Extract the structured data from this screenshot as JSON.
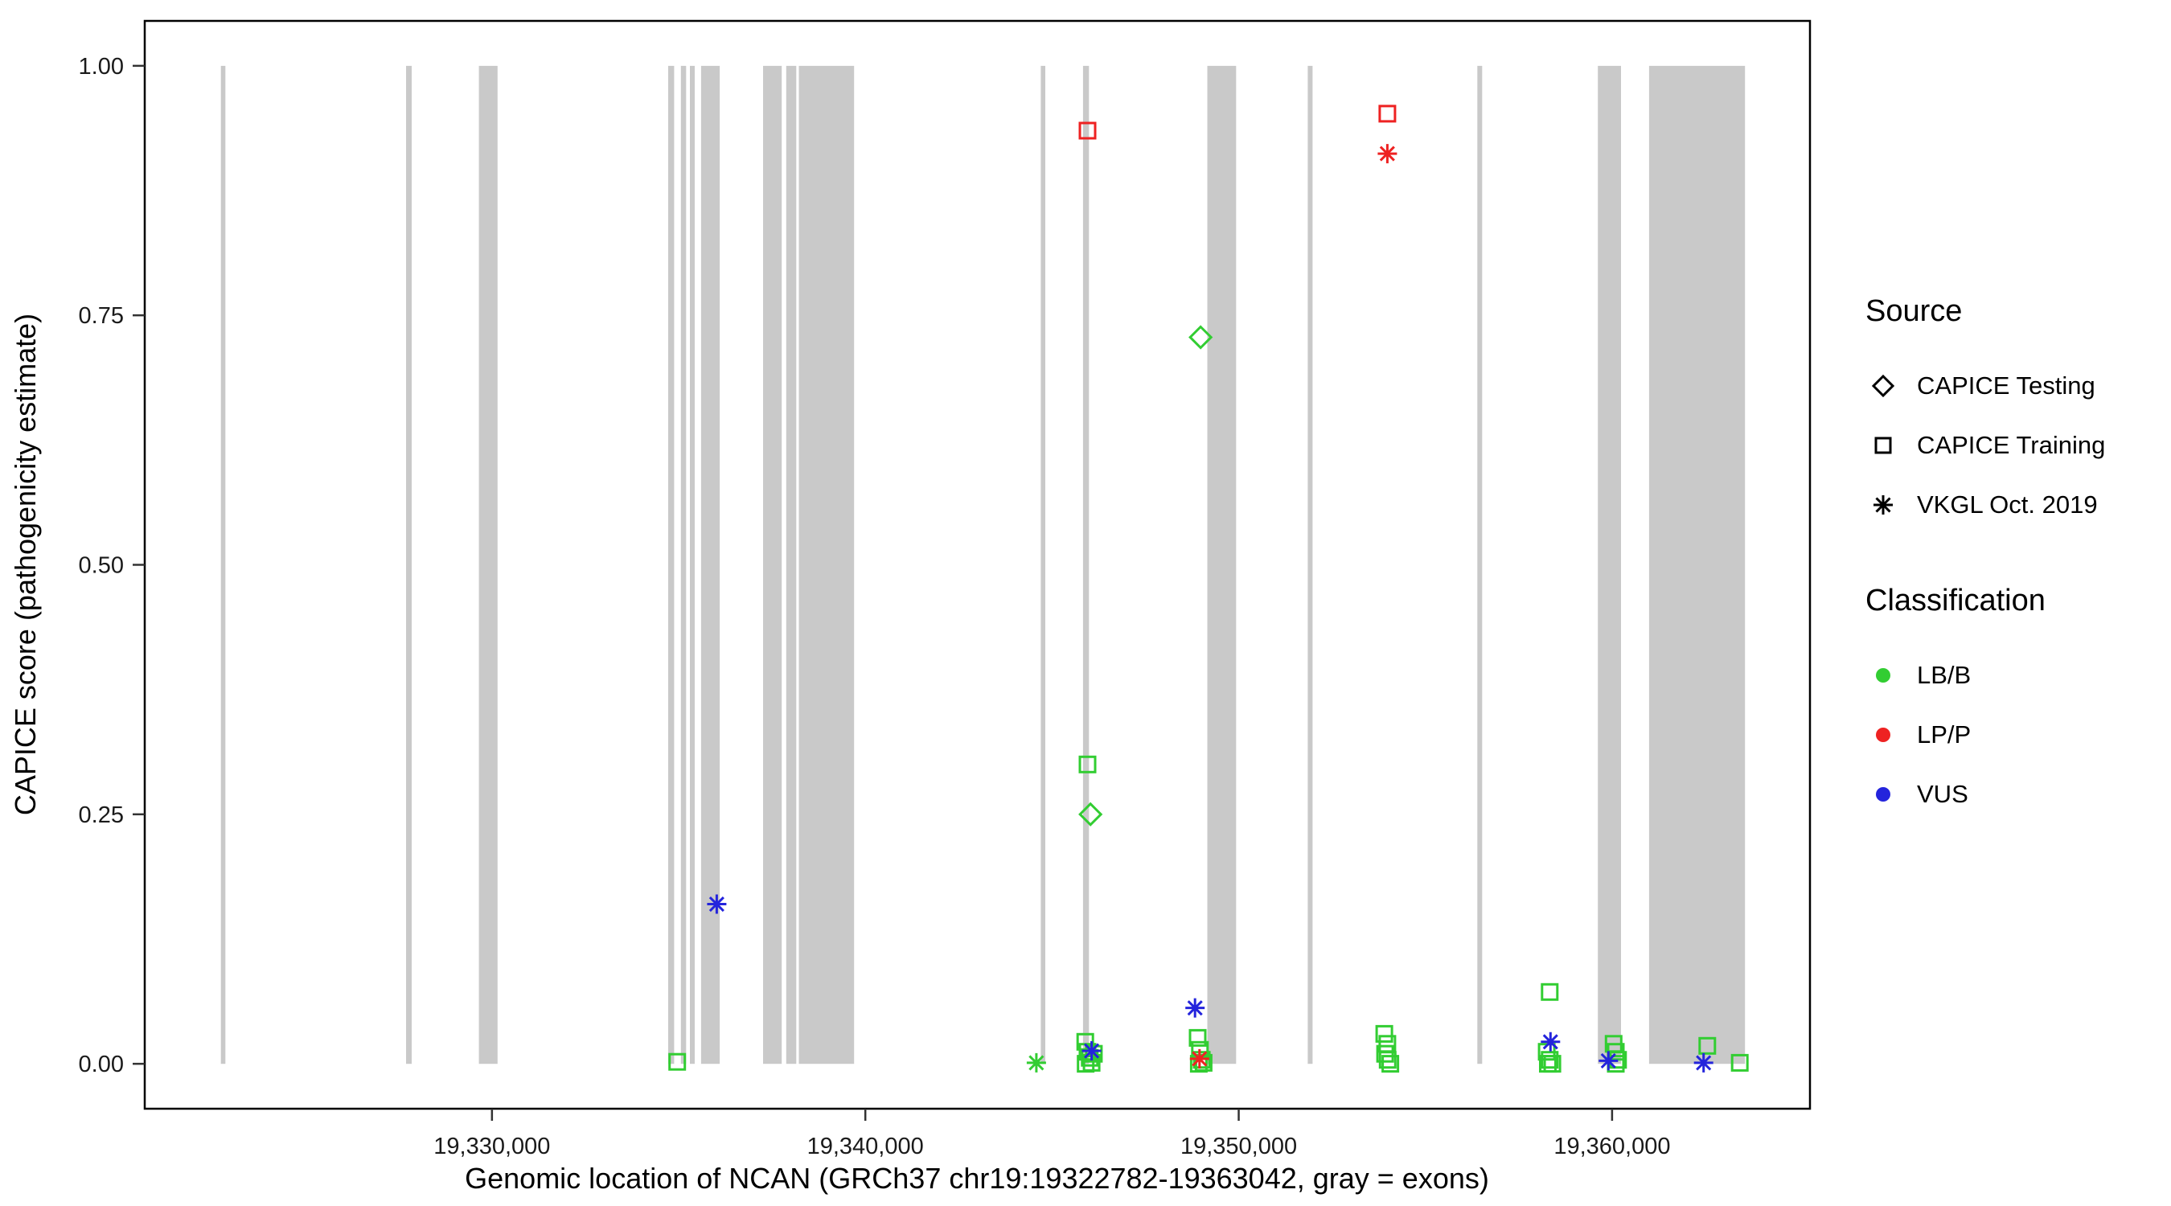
{
  "figure": {
    "background": "#FFFFFF"
  },
  "chart_data": {
    "type": "scatter",
    "title": "",
    "xlabel": "Genomic location of NCAN (GRCh37 chr19:19322782-19363042, gray = exons)",
    "ylabel": "CAPICE score (pathogenicity estimate)",
    "xlim": [
      19320700,
      19365300
    ],
    "ylim": [
      -0.045,
      1.045
    ],
    "x_ticks": [
      19330000,
      19340000,
      19350000,
      19360000
    ],
    "x_tick_labels": [
      "19,330,000",
      "19,340,000",
      "19,350,000",
      "19,360,000"
    ],
    "y_ticks": [
      0.0,
      0.25,
      0.5,
      0.75,
      1.0
    ],
    "y_tick_labels": [
      "0.00",
      "0.25",
      "0.50",
      "0.75",
      "1.00"
    ],
    "grid": "off",
    "legend_position": "right",
    "exon_color": "#C9C9C9",
    "exon_band_yrange": [
      0,
      1
    ],
    "exons": [
      [
        19322740,
        19322860
      ],
      [
        19327700,
        19327850
      ],
      [
        19329650,
        19330150
      ],
      [
        19334720,
        19334880
      ],
      [
        19335060,
        19335200
      ],
      [
        19335300,
        19335430
      ],
      [
        19335600,
        19336100
      ],
      [
        19337260,
        19337760
      ],
      [
        19337880,
        19338150
      ],
      [
        19338220,
        19339700
      ],
      [
        19344700,
        19344820
      ],
      [
        19345830,
        19345990
      ],
      [
        19349160,
        19349930
      ],
      [
        19351850,
        19351980
      ],
      [
        19356390,
        19356520
      ],
      [
        19359620,
        19360240
      ],
      [
        19360990,
        19363560
      ]
    ],
    "colors": {
      "LB/B": "#32CD32",
      "LP/P": "#EE2222",
      "VUS": "#2424DC"
    },
    "markers": {
      "CAPICE Testing": "diamond",
      "CAPICE Training": "square",
      "VKGL Oct. 2019": "asterisk"
    },
    "points": [
      {
        "x": 19348980,
        "y": 0.728,
        "source": "CAPICE Testing",
        "classification": "LB/B"
      },
      {
        "x": 19346030,
        "y": 0.25,
        "source": "CAPICE Testing",
        "classification": "LB/B"
      },
      {
        "x": 19345950,
        "y": 0.3,
        "source": "CAPICE Training",
        "classification": "LB/B"
      },
      {
        "x": 19334960,
        "y": 0.002,
        "source": "CAPICE Training",
        "classification": "LB/B"
      },
      {
        "x": 19358330,
        "y": 0.072,
        "source": "CAPICE Training",
        "classification": "LB/B"
      },
      {
        "x": 19345890,
        "y": 0.022,
        "source": "CAPICE Training",
        "classification": "LB/B"
      },
      {
        "x": 19345950,
        "y": 0.012,
        "source": "CAPICE Training",
        "classification": "LB/B"
      },
      {
        "x": 19346010,
        "y": 0.006,
        "source": "CAPICE Training",
        "classification": "LB/B"
      },
      {
        "x": 19346060,
        "y": 0.001,
        "source": "CAPICE Training",
        "classification": "LB/B"
      },
      {
        "x": 19345900,
        "y": 0.0,
        "source": "CAPICE Training",
        "classification": "LB/B"
      },
      {
        "x": 19346120,
        "y": 0.01,
        "source": "CAPICE Training",
        "classification": "LB/B"
      },
      {
        "x": 19348900,
        "y": 0.026,
        "source": "CAPICE Training",
        "classification": "LB/B"
      },
      {
        "x": 19348960,
        "y": 0.014,
        "source": "CAPICE Training",
        "classification": "LB/B"
      },
      {
        "x": 19349010,
        "y": 0.004,
        "source": "CAPICE Training",
        "classification": "LB/B"
      },
      {
        "x": 19348930,
        "y": 0.0,
        "source": "CAPICE Training",
        "classification": "LB/B"
      },
      {
        "x": 19349060,
        "y": 0.001,
        "source": "CAPICE Training",
        "classification": "LB/B"
      },
      {
        "x": 19353900,
        "y": 0.03,
        "source": "CAPICE Training",
        "classification": "LB/B"
      },
      {
        "x": 19353980,
        "y": 0.02,
        "source": "CAPICE Training",
        "classification": "LB/B"
      },
      {
        "x": 19353920,
        "y": 0.01,
        "source": "CAPICE Training",
        "classification": "LB/B"
      },
      {
        "x": 19353990,
        "y": 0.004,
        "source": "CAPICE Training",
        "classification": "LB/B"
      },
      {
        "x": 19354060,
        "y": 0.0,
        "source": "CAPICE Training",
        "classification": "LB/B"
      },
      {
        "x": 19358250,
        "y": 0.012,
        "source": "CAPICE Training",
        "classification": "LB/B"
      },
      {
        "x": 19358330,
        "y": 0.004,
        "source": "CAPICE Training",
        "classification": "LB/B"
      },
      {
        "x": 19358280,
        "y": 0.0,
        "source": "CAPICE Training",
        "classification": "LB/B"
      },
      {
        "x": 19358400,
        "y": 0.0,
        "source": "CAPICE Training",
        "classification": "LB/B"
      },
      {
        "x": 19360040,
        "y": 0.02,
        "source": "CAPICE Training",
        "classification": "LB/B"
      },
      {
        "x": 19360100,
        "y": 0.012,
        "source": "CAPICE Training",
        "classification": "LB/B"
      },
      {
        "x": 19360160,
        "y": 0.004,
        "source": "CAPICE Training",
        "classification": "LB/B"
      },
      {
        "x": 19360100,
        "y": 0.0,
        "source": "CAPICE Training",
        "classification": "LB/B"
      },
      {
        "x": 19362550,
        "y": 0.018,
        "source": "CAPICE Training",
        "classification": "LB/B"
      },
      {
        "x": 19363420,
        "y": 0.001,
        "source": "CAPICE Training",
        "classification": "LB/B"
      },
      {
        "x": 19344580,
        "y": 0.001,
        "source": "VKGL Oct. 2019",
        "classification": "LB/B"
      },
      {
        "x": 19336020,
        "y": 0.16,
        "source": "VKGL Oct. 2019",
        "classification": "VUS"
      },
      {
        "x": 19348830,
        "y": 0.056,
        "source": "VKGL Oct. 2019",
        "classification": "VUS"
      },
      {
        "x": 19346060,
        "y": 0.013,
        "source": "VKGL Oct. 2019",
        "classification": "VUS"
      },
      {
        "x": 19358350,
        "y": 0.022,
        "source": "VKGL Oct. 2019",
        "classification": "VUS"
      },
      {
        "x": 19359900,
        "y": 0.003,
        "source": "VKGL Oct. 2019",
        "classification": "VUS"
      },
      {
        "x": 19362450,
        "y": 0.001,
        "source": "VKGL Oct. 2019",
        "classification": "VUS"
      },
      {
        "x": 19345950,
        "y": 0.935,
        "source": "CAPICE Training",
        "classification": "LP/P"
      },
      {
        "x": 19353980,
        "y": 0.952,
        "source": "CAPICE Training",
        "classification": "LP/P"
      },
      {
        "x": 19353980,
        "y": 0.912,
        "source": "VKGL Oct. 2019",
        "classification": "LP/P"
      },
      {
        "x": 19348950,
        "y": 0.005,
        "source": "VKGL Oct. 2019",
        "classification": "LP/P"
      }
    ]
  },
  "legend": {
    "source": {
      "title": "Source",
      "items": [
        {
          "label": "CAPICE Testing",
          "marker": "diamond"
        },
        {
          "label": "CAPICE Training",
          "marker": "square"
        },
        {
          "label": "VKGL Oct. 2019",
          "marker": "asterisk"
        }
      ]
    },
    "classification": {
      "title": "Classification",
      "items": [
        {
          "label": "LB/B",
          "color": "#32CD32"
        },
        {
          "label": "LP/P",
          "color": "#EE2222"
        },
        {
          "label": "VUS",
          "color": "#2424DC"
        }
      ]
    }
  }
}
